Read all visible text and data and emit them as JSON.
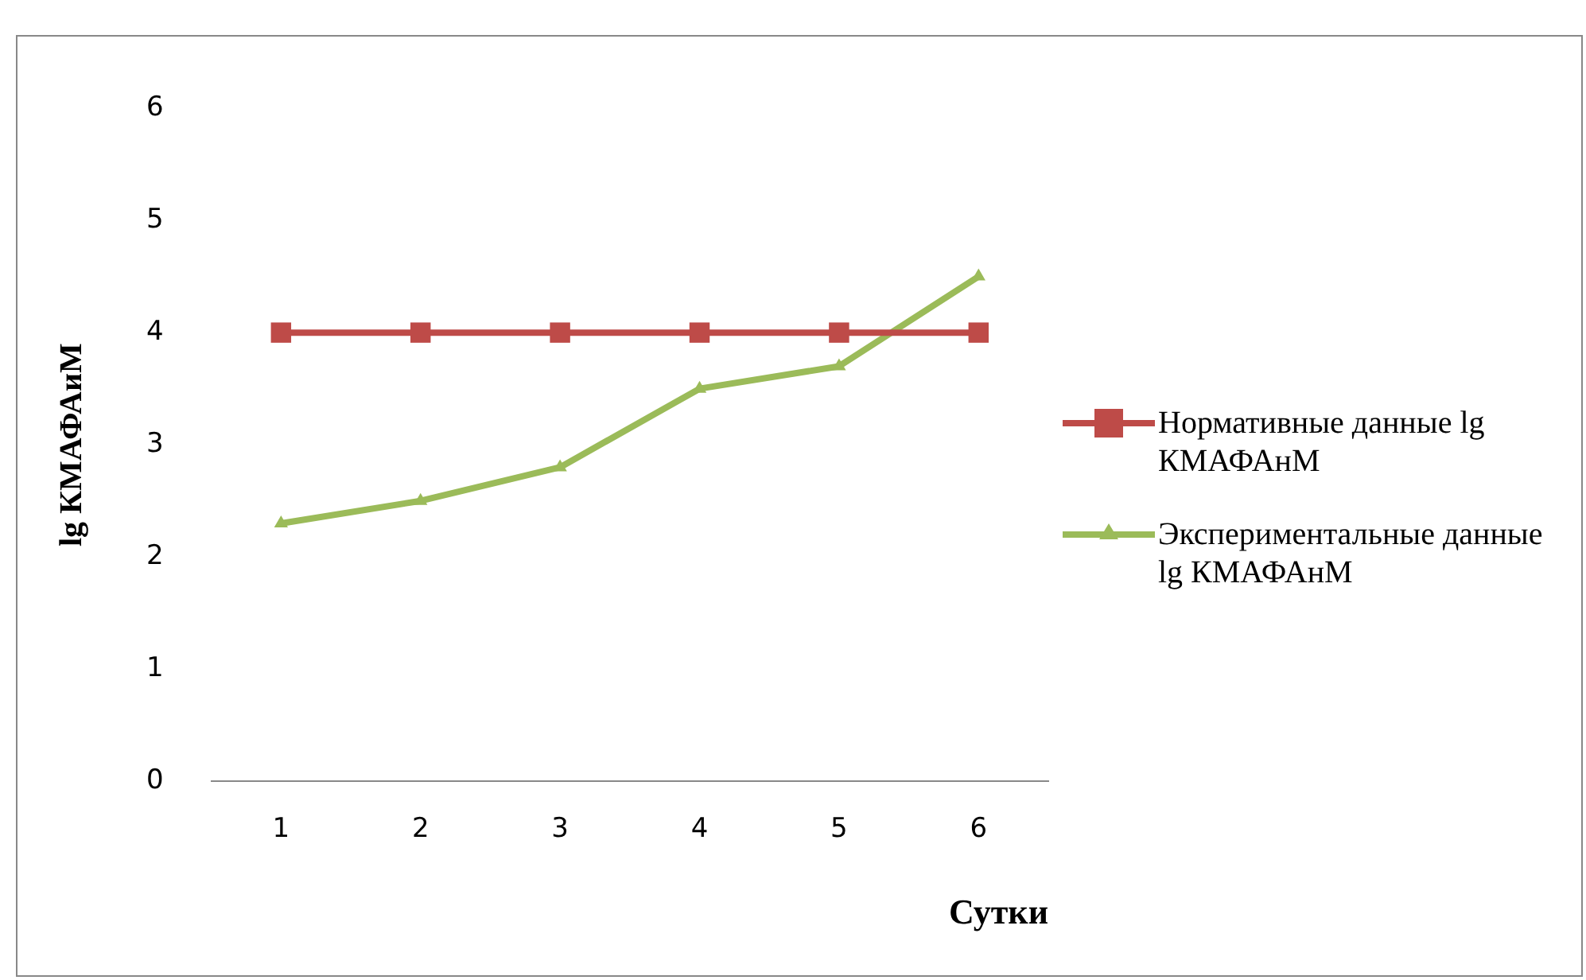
{
  "chart_data": {
    "type": "line",
    "ylabel": "lg КМАФАиМ",
    "xlabel": "Сутки",
    "categories": [
      "1",
      "2",
      "3",
      "4",
      "5",
      "6"
    ],
    "ylim": [
      0,
      6
    ],
    "yticks": [
      0,
      1,
      2,
      3,
      4,
      5,
      6
    ],
    "grid": false,
    "legend": "right",
    "series": [
      {
        "name": "Нормативные данные lg КМАФАнМ",
        "color": "#be4b48",
        "marker": "square",
        "values": [
          4,
          4,
          4,
          4,
          4,
          4
        ]
      },
      {
        "name": "Экспериментальные данные lg КМАФАнМ",
        "color": "#9bbb59",
        "marker": "triangle",
        "values": [
          2.3,
          2.5,
          2.8,
          3.5,
          3.7,
          4.5
        ]
      }
    ]
  }
}
